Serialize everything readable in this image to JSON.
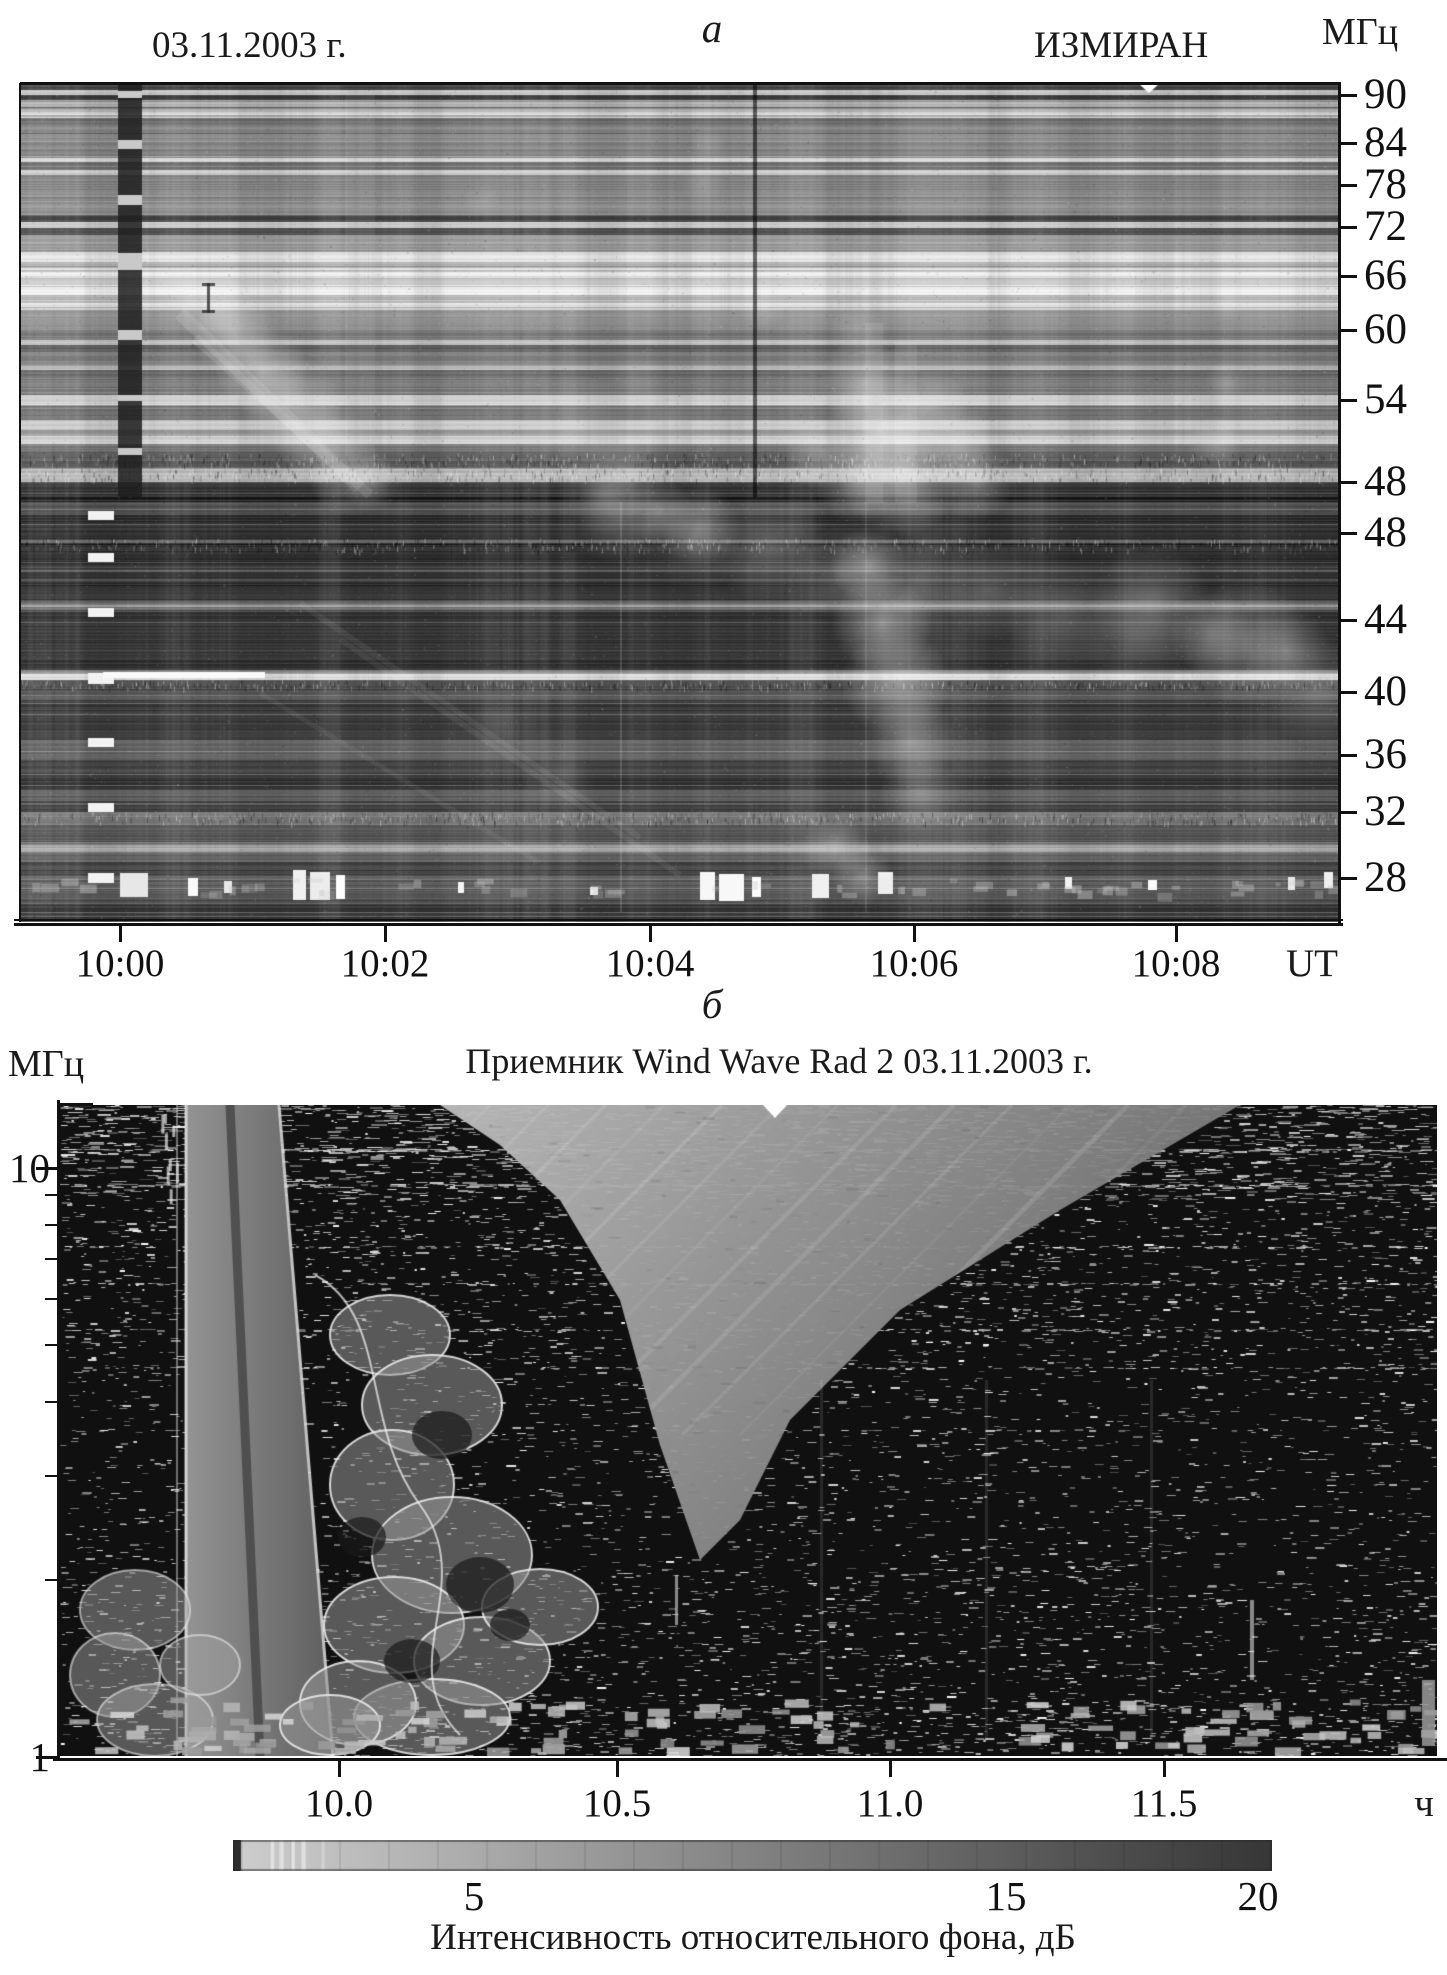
{
  "figure": {
    "panel_a": {
      "panel_label": "а",
      "date_label": "03.11.2003 г.",
      "observatory_label": "ИЗМИРАН",
      "y_axis_unit": "МГц",
      "x_axis_unit": "UT",
      "x_ticks": [
        "10:00",
        "10:02",
        "10:04",
        "10:06",
        "10:08"
      ],
      "y_ticks_upper": [
        "90",
        "84",
        "78",
        "72",
        "66",
        "60",
        "54",
        "48"
      ],
      "y_ticks_lower": [
        "48",
        "44",
        "40",
        "36",
        "32",
        "28"
      ]
    },
    "panel_b": {
      "panel_label": "б",
      "title": "Приемник Wind Wave Rad 2 03.11.2003 г.",
      "y_axis_unit": "МГц",
      "x_axis_unit": "ч",
      "x_ticks": [
        "10.0",
        "10.5",
        "11.0",
        "11.5"
      ],
      "y_ticks": [
        "10",
        "1"
      ]
    },
    "colorbar": {
      "tick_labels": [
        "5",
        "15",
        "20"
      ],
      "caption": "Интенсивность относительного фона, дБ"
    }
  },
  "chart_data": [
    {
      "type": "heatmap",
      "title": "ИЗМИРАН 03.11.2003 г.",
      "xlabel": "UT",
      "ylabel": "МГц",
      "x_tick_labels": [
        "10:00",
        "10:02",
        "10:04",
        "10:06",
        "10:08"
      ],
      "x_range_ut": [
        "09:59:15",
        "10:09:15"
      ],
      "y_ticks_upper_mhz": [
        90,
        84,
        78,
        72,
        66,
        60,
        54,
        48
      ],
      "y_ticks_lower_mhz": [
        48,
        44,
        40,
        36,
        32,
        28
      ],
      "y_scale": "two stacked frequency bands, 90-48 MHz (top) and 48-28 MHz (bottom), nonlinear tick spacing",
      "legend_position": "none",
      "grid": false,
      "content": "grayscale dynamic radio spectrum: horizontal interference bands, dark calibration stripe just after 10:00, bright drifting burst groups near 10:01-10:02 and 10:05-10:07, bright white interference blobs along the 28 MHz bottom rows"
    },
    {
      "type": "heatmap",
      "title": "Приемник Wind Wave Rad 2 03.11.2003 г.",
      "xlabel": "ч",
      "ylabel": "МГц",
      "x_tick_values": [
        10.0,
        10.5,
        11.0,
        11.5
      ],
      "x_range_hours": [
        9.5,
        12.0
      ],
      "y_tick_values_mhz": [
        10,
        1
      ],
      "y_range_mhz": [
        1,
        13
      ],
      "y_scale": "log",
      "legend_position": "none",
      "grid": false,
      "content": "grayscale dynamic spectrum: smooth gray vertical band near 9.9 h, bright contoured burst front drifting down in frequency after 10.0 h, light diagonal wedge at high frequencies, dark speckled background",
      "colorbar": {
        "caption": "Интенсивность относительного фона, дБ",
        "tick_values": [
          5,
          15,
          20
        ],
        "range_db": [
          0,
          20
        ],
        "scale": "light gray = low dB, dark gray = high dB"
      }
    }
  ]
}
